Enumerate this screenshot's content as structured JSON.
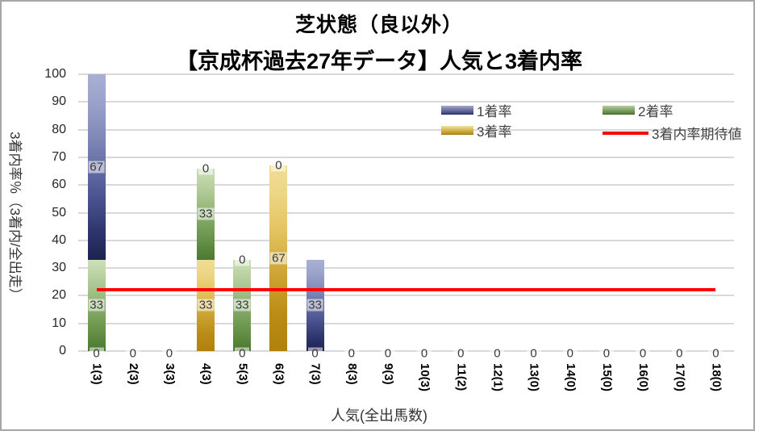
{
  "title": "芝状態（良以外）",
  "subtitle": "【京成杯過去27年データ】人気と3着内率",
  "y_axis": {
    "title": "3着内率％（3着内/全出走）",
    "ticks": [
      0,
      10,
      20,
      30,
      40,
      50,
      60,
      70,
      80,
      90,
      100
    ]
  },
  "x_axis": {
    "title": "人気(全出馬数)"
  },
  "legend": {
    "items": [
      {
        "label": "1着率",
        "swatch": "blue"
      },
      {
        "label": "2着率",
        "swatch": "green"
      },
      {
        "label": "3着率",
        "swatch": "gold"
      },
      {
        "label": "3着内率期待値",
        "swatch": "red-line"
      }
    ]
  },
  "colors": {
    "series_1st": "#2f3770",
    "series_2nd": "#4e7a33",
    "series_3rd": "#bd8d12",
    "expectation_line": "#fe0000",
    "gridline": "#d9d9d9"
  },
  "chart_data": {
    "type": "bar",
    "stacked": true,
    "title": "芝状態（良以外）【京成杯過去27年データ】人気と3着内率",
    "xlabel": "人気(全出馬数)",
    "ylabel": "3着内率％（3着内/全出走）",
    "ylim": [
      0,
      100
    ],
    "tick_step": 10,
    "grid": true,
    "legend_position": "top-right",
    "categories": [
      "1(3)",
      "2(3)",
      "3(3)",
      "4(3)",
      "5(3)",
      "6(3)",
      "7(3)",
      "8(3)",
      "9(3)",
      "10(3)",
      "11(2)",
      "12(1)",
      "13(0)",
      "14(0)",
      "15(0)",
      "16(0)",
      "17(0)",
      "18(0)"
    ],
    "stack_order_bottom_to_top": [
      "3着率",
      "2着率",
      "1着率"
    ],
    "series": [
      {
        "name": "3着率",
        "css": "seg-s3",
        "values": [
          0,
          0,
          0,
          33,
          0,
          67,
          0,
          0,
          0,
          0,
          0,
          0,
          0,
          0,
          0,
          0,
          0,
          0
        ]
      },
      {
        "name": "2着率",
        "css": "seg-s2",
        "values": [
          33,
          0,
          0,
          33,
          33,
          0,
          0,
          0,
          0,
          0,
          0,
          0,
          0,
          0,
          0,
          0,
          0,
          0
        ]
      },
      {
        "name": "1着率",
        "css": "seg-s1",
        "values": [
          67,
          0,
          0,
          0,
          0,
          0,
          33,
          0,
          0,
          0,
          0,
          0,
          0,
          0,
          0,
          0,
          0,
          0
        ]
      }
    ],
    "line_series": {
      "name": "3着内率期待値",
      "value": 22.2,
      "color": "#fe0000"
    },
    "data_labels_visible": true
  }
}
